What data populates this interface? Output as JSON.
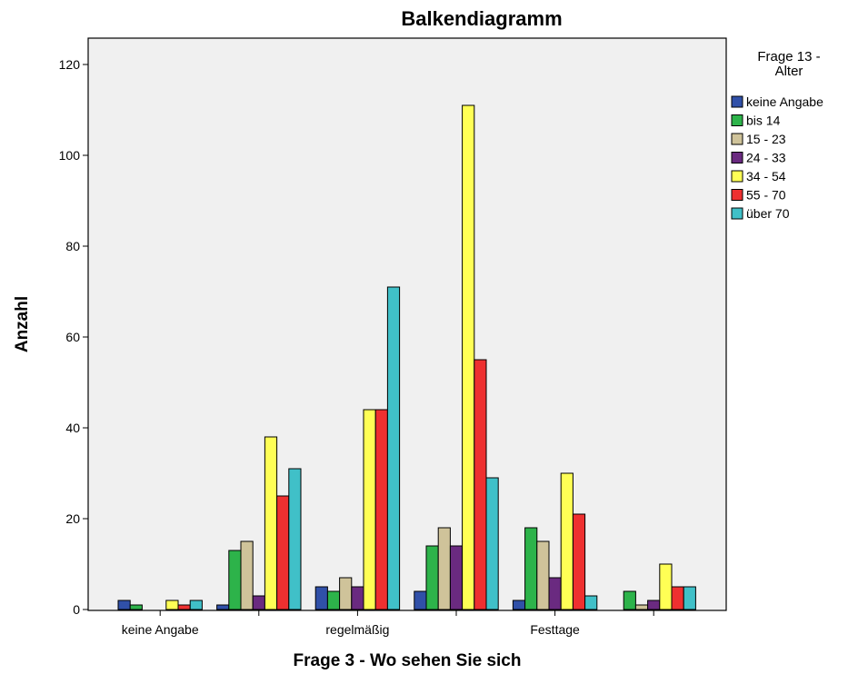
{
  "chart_data": {
    "type": "bar",
    "title": "Balkendiagramm",
    "xlabel": "Frage 3 - Wo sehen Sie sich",
    "ylabel": "Anzahl",
    "ylim": [
      0,
      125
    ],
    "yticks": [
      0,
      20,
      40,
      60,
      80,
      100,
      120
    ],
    "grid": false,
    "legend_position": "right",
    "legend_title_lines": [
      "Frage 13 -",
      "Alter"
    ],
    "categories": [
      "keine Angabe",
      "",
      "regelmäßig",
      "",
      "Festtage",
      ""
    ],
    "series": [
      {
        "name": "keine Angabe",
        "color": "#3050a8",
        "values": [
          2,
          1,
          5,
          4,
          2,
          0
        ]
      },
      {
        "name": "bis 14",
        "color": "#2db34a",
        "values": [
          1,
          13,
          4,
          14,
          18,
          4
        ]
      },
      {
        "name": "15 - 23",
        "color": "#cfc39a",
        "values": [
          0,
          15,
          7,
          18,
          15,
          1
        ]
      },
      {
        "name": "24 - 33",
        "color": "#6a2a80",
        "values": [
          0,
          3,
          5,
          14,
          7,
          2
        ]
      },
      {
        "name": "34 - 54",
        "color": "#ffff55",
        "values": [
          2,
          38,
          44,
          111,
          30,
          10
        ]
      },
      {
        "name": "55 - 70",
        "color": "#ee3030",
        "values": [
          1,
          25,
          44,
          55,
          21,
          5
        ]
      },
      {
        "name": "über 70",
        "color": "#40c0c8",
        "values": [
          2,
          31,
          71,
          29,
          3,
          5
        ]
      }
    ]
  }
}
